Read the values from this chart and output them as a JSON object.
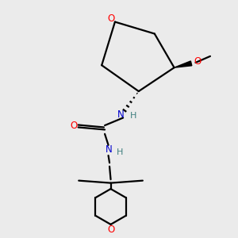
{
  "bg_color": "#ebebeb",
  "bond_color": "#000000",
  "O_color": "#ff0000",
  "N_color": "#0000cc",
  "H_color": "#408080",
  "line_width": 1.6,
  "fig_size": [
    3.0,
    3.0
  ],
  "dpi": 100,
  "xlim": [
    0,
    10
  ],
  "ylim": [
    0,
    10
  ]
}
